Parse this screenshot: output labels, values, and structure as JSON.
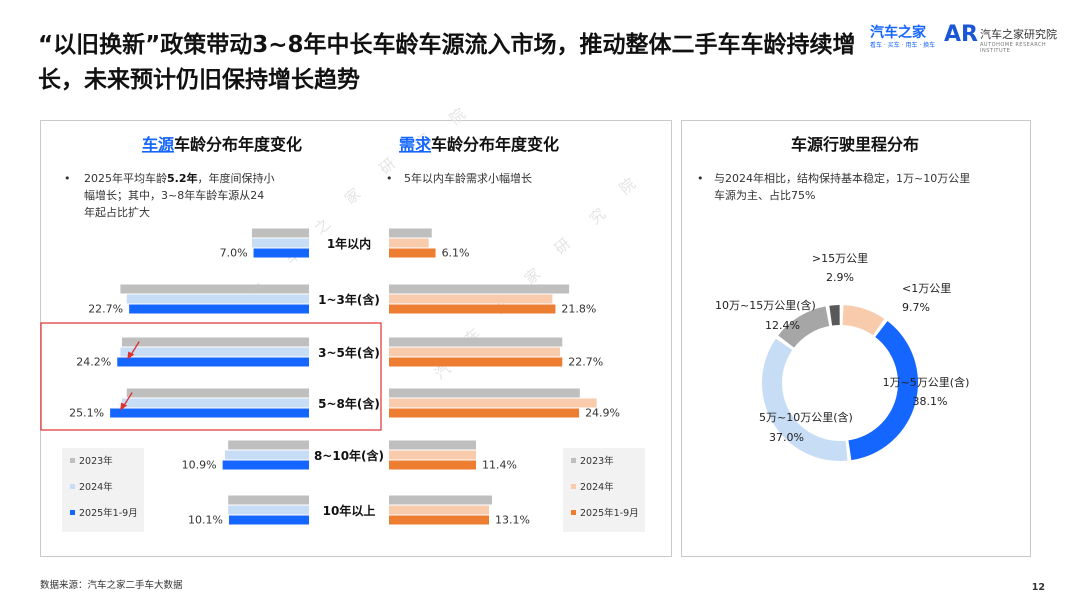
{
  "title": "“以旧换新”政策带动3~8年中长车龄车源流入市场，推动整体二手车车龄持续增长，未来预计仍旧保持增长趋势",
  "logos": {
    "brand": "汽车之家",
    "brand_sub": "看车 · 买车 · 用车 · 换车",
    "institute_mark": "AR",
    "institute": "汽车之家研究院",
    "institute_sub": "AUTOHOME RESEARCH INSTITUTE"
  },
  "watermark": "汽 车 之 家 研 究 院",
  "source": "数据来源：汽车之家二手车大数据",
  "page_number": "12",
  "colors": {
    "gray": "#bfbfbf",
    "lightblue": "#c7dcf5",
    "blue": "#1565ff",
    "peach": "#f8cbad",
    "orange": "#ed7d31",
    "lightgray": "#d9d9d9",
    "red": "#e03030"
  },
  "chart_data": [
    {
      "type": "bar",
      "orientation": "horizontal",
      "title_highlight": "车源",
      "title_rest": "车龄分布年度变化",
      "note": "2025年平均车龄5.2年，年度间保持小幅增长；其中，3~8年车龄车源从24年起占比扩大",
      "note_parts": [
        "2025年平均车龄",
        "5.2年",
        "，年度间保持小",
        "幅增长；其中，3~8年车龄车源从24",
        "年起占比扩大"
      ],
      "categories": [
        "1年以内",
        "1~3年(含)",
        "3~5年(含)",
        "5~8年(含)",
        "8~10年(含)",
        "10年以上"
      ],
      "series": [
        {
          "name": "2023年",
          "values": [
            7.2,
            23.8,
            23.6,
            23.0,
            10.2,
            10.2
          ]
        },
        {
          "name": "2024年",
          "values": [
            7.2,
            23.0,
            23.8,
            23.6,
            10.6,
            10.2
          ]
        },
        {
          "name": "2025年1-9月",
          "values": [
            7.0,
            22.7,
            24.2,
            25.1,
            10.9,
            10.1
          ]
        }
      ],
      "data_labels": [
        "7.0%",
        "22.7%",
        "24.2%",
        "25.1%",
        "10.9%",
        "10.1%"
      ],
      "highlight_box": [
        "3~5年(含)",
        "5~8年(含)"
      ],
      "legend": [
        "2023年",
        "2024年",
        "2025年1-9月"
      ],
      "xlim": [
        0,
        26
      ]
    },
    {
      "type": "bar",
      "orientation": "horizontal",
      "title_highlight": "需求",
      "title_rest": "车龄分布年度变化",
      "note": "5年以内车龄需求小幅增长",
      "categories": [
        "1年以内",
        "1~3年(含)",
        "3~5年(含)",
        "5~8年(含)",
        "8~10年(含)",
        "10年以上"
      ],
      "series": [
        {
          "name": "2023年",
          "values": [
            5.6,
            23.6,
            22.7,
            25.0,
            11.4,
            13.5
          ]
        },
        {
          "name": "2024年",
          "values": [
            5.2,
            21.4,
            22.4,
            27.2,
            11.4,
            13.1
          ]
        },
        {
          "name": "2025年1-9月",
          "values": [
            6.1,
            21.8,
            22.7,
            24.9,
            11.4,
            13.1
          ]
        }
      ],
      "data_labels": [
        "6.1%",
        "21.8%",
        "22.7%",
        "24.9%",
        "11.4%",
        "13.1%"
      ],
      "legend": [
        "2023年",
        "2024年",
        "2025年1-9月"
      ],
      "xlim": [
        0,
        30
      ]
    },
    {
      "type": "pie",
      "style": "donut",
      "title": "车源行驶里程分布",
      "note": "与2024年相比，结构保持基本稳定，1万~10万公里车源为主、占比75%",
      "slices": [
        {
          "label": "<1万公里",
          "value": 9.7,
          "color": "#f8cbad",
          "display": "9.7%"
        },
        {
          "label": "1万~5万公里(含)",
          "value": 38.1,
          "color": "#1565ff",
          "display": "38.1%"
        },
        {
          "label": "5万~10万公里(含)",
          "value": 37.0,
          "color": "#c7dcf5",
          "display": "37.0%"
        },
        {
          "label": "10万~15万公里(含)",
          "value": 12.4,
          "color": "#a6a6a6",
          "display": "12.4%"
        },
        {
          "label": ">15万公里",
          "value": 2.9,
          "color": "#595959",
          "display": "2.9%"
        }
      ]
    }
  ]
}
